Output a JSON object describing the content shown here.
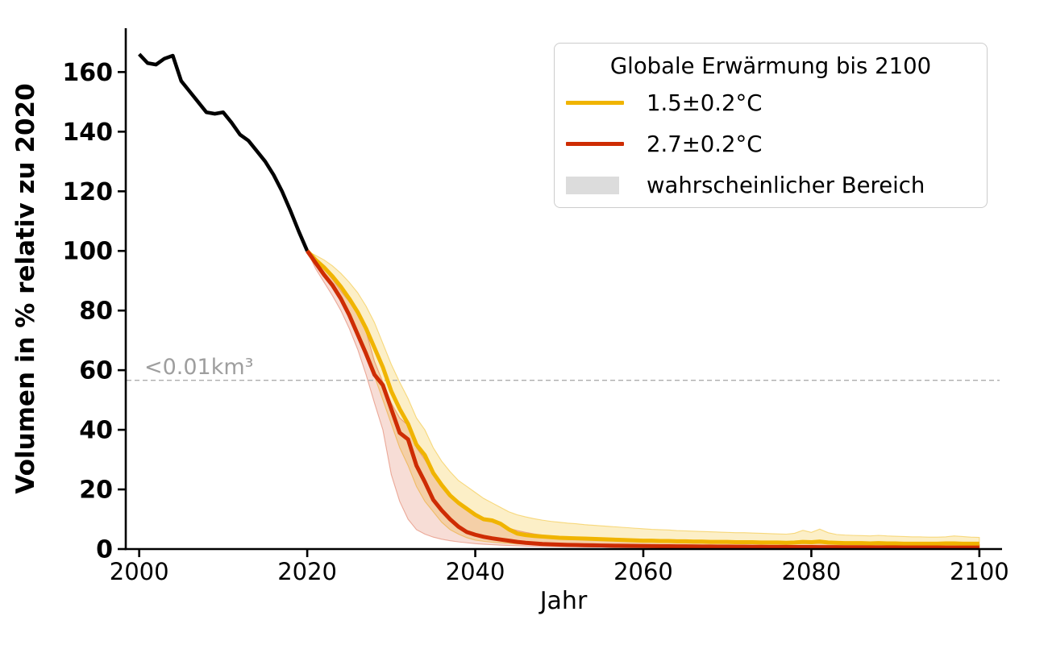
{
  "chart_data": {
    "type": "line",
    "title": "",
    "xlabel": "Jahr",
    "ylabel": "Volumen in % relativ zu 2020",
    "xlim": [
      1998.4,
      2102.7
    ],
    "ylim": [
      0,
      174.7
    ],
    "xticks": [
      2000,
      2020,
      2040,
      2060,
      2080,
      2100
    ],
    "yticks": [
      0,
      20,
      40,
      60,
      80,
      100,
      120,
      140,
      160
    ],
    "grid": false,
    "legend": {
      "position": "upper right",
      "title": "Globale Erwärmung bis 2100",
      "entries": [
        {
          "label": "1.5±0.2°C",
          "type": "line",
          "color": "#f0b400"
        },
        {
          "label": "2.7±0.2°C",
          "type": "line",
          "color": "#ce2c03"
        },
        {
          "label": "wahrscheinlicher Bereich",
          "type": "patch",
          "color": "#dcdcdc"
        }
      ]
    },
    "annotation": {
      "threshold_value": 56.6,
      "label": "<0.01km³",
      "line_color": "#adadad",
      "label_color": "#9e9e9e"
    },
    "series": [
      {
        "id": "historical",
        "color": "#000000",
        "width": 4.5,
        "x": [
          2000,
          2001,
          2002,
          2003,
          2004,
          2005,
          2006,
          2007,
          2008,
          2009,
          2010,
          2011,
          2012,
          2013,
          2014,
          2015,
          2016,
          2017,
          2018,
          2019,
          2020
        ],
        "y": [
          166,
          163,
          162.5,
          164.5,
          165.5,
          157,
          153.5,
          150,
          146.5,
          146,
          146.5,
          143,
          139,
          137,
          133.5,
          130,
          125.5,
          120,
          113.5,
          106.5,
          100
        ]
      },
      {
        "id": "scenario-1.5C",
        "color": "#f0b400",
        "width": 5,
        "band_fill": "rgba(240,180,0,0.22)",
        "band_stroke": "rgba(240,180,0,0.45)",
        "x": [
          2020,
          2021,
          2022,
          2023,
          2024,
          2025,
          2026,
          2027,
          2028,
          2029,
          2030,
          2031,
          2032,
          2033,
          2034,
          2035,
          2036,
          2037,
          2038,
          2039,
          2040,
          2041,
          2042,
          2043,
          2044,
          2045,
          2046,
          2047,
          2048,
          2049,
          2050,
          2051,
          2052,
          2053,
          2054,
          2055,
          2056,
          2057,
          2058,
          2059,
          2060,
          2061,
          2062,
          2063,
          2064,
          2065,
          2066,
          2067,
          2068,
          2069,
          2070,
          2071,
          2072,
          2073,
          2074,
          2075,
          2076,
          2077,
          2078,
          2079,
          2080,
          2081,
          2082,
          2083,
          2084,
          2085,
          2086,
          2087,
          2088,
          2089,
          2090,
          2091,
          2092,
          2093,
          2094,
          2095,
          2096,
          2097,
          2098,
          2099,
          2100
        ],
        "y": [
          100,
          97,
          94.5,
          91.5,
          88,
          84,
          79.5,
          74,
          67.5,
          61,
          53,
          47,
          42,
          35,
          31.5,
          25.5,
          21.5,
          18,
          15.5,
          13.5,
          11.5,
          10,
          9.6,
          8.5,
          6.6,
          5.2,
          4.7,
          4.4,
          4.2,
          4.0,
          3.8,
          3.7,
          3.6,
          3.5,
          3.4,
          3.3,
          3.2,
          3.1,
          3.0,
          2.9,
          2.8,
          2.8,
          2.7,
          2.7,
          2.6,
          2.6,
          2.5,
          2.5,
          2.4,
          2.4,
          2.4,
          2.3,
          2.3,
          2.3,
          2.2,
          2.2,
          2.2,
          2.1,
          2.2,
          2.4,
          2.3,
          2.5,
          2.2,
          2.1,
          2.0,
          2.0,
          2.0,
          1.9,
          2.0,
          1.9,
          1.9,
          1.8,
          1.8,
          1.8,
          1.8,
          1.8,
          1.9,
          1.9,
          1.8,
          1.8,
          1.8
        ],
        "upper": [
          100,
          98.5,
          97,
          95,
          92.5,
          89.5,
          86,
          81.5,
          76,
          69,
          62,
          56,
          50.5,
          44,
          40,
          34,
          29.5,
          26,
          23,
          21,
          19,
          17,
          15.5,
          14,
          12.5,
          11.5,
          10.8,
          10.2,
          9.7,
          9.3,
          9.0,
          8.7,
          8.5,
          8.2,
          8.0,
          7.8,
          7.6,
          7.4,
          7.2,
          7.0,
          6.8,
          6.6,
          6.5,
          6.4,
          6.2,
          6.1,
          6.0,
          5.9,
          5.8,
          5.7,
          5.6,
          5.5,
          5.5,
          5.4,
          5.3,
          5.2,
          5.1,
          5.0,
          5.3,
          6.3,
          5.6,
          6.7,
          5.5,
          4.9,
          4.7,
          4.6,
          4.5,
          4.4,
          4.6,
          4.4,
          4.3,
          4.2,
          4.1,
          4.1,
          4.0,
          4.0,
          4.1,
          4.4,
          4.2,
          4.0,
          3.9
        ],
        "lower": [
          100,
          96,
          92.5,
          88.5,
          84,
          79,
          73,
          66,
          58,
          50,
          42,
          34,
          28,
          21,
          16,
          12.5,
          9,
          6.5,
          5,
          3.8,
          3.0,
          2.6,
          2.3,
          2.1,
          1.9,
          1.7,
          1.6,
          1.5,
          1.45,
          1.4,
          1.35,
          1.3,
          1.28,
          1.25,
          1.22,
          1.2,
          1.17,
          1.15,
          1.12,
          1.1,
          1.08,
          1.05,
          1.02,
          1.0,
          0.98,
          0.96,
          0.94,
          0.92,
          0.9,
          0.88,
          0.86,
          0.85,
          0.83,
          0.82,
          0.8,
          0.79,
          0.78,
          0.76,
          0.75,
          0.74,
          0.72,
          0.71,
          0.7,
          0.69,
          0.68,
          0.67,
          0.66,
          0.65,
          0.64,
          0.63,
          0.62,
          0.61,
          0.6,
          0.6,
          0.59,
          0.58,
          0.58,
          0.57,
          0.57,
          0.56,
          0.55
        ]
      },
      {
        "id": "scenario-2.7C",
        "color": "#ce2c03",
        "width": 5,
        "band_fill": "rgba(206,44,3,0.16)",
        "band_stroke": "rgba(206,44,3,0.35)",
        "x": [
          2020,
          2021,
          2022,
          2023,
          2024,
          2025,
          2026,
          2027,
          2028,
          2029,
          2030,
          2031,
          2032,
          2033,
          2034,
          2035,
          2036,
          2037,
          2038,
          2039,
          2040,
          2041,
          2042,
          2043,
          2044,
          2045,
          2046,
          2047,
          2048,
          2049,
          2050,
          2051,
          2052,
          2053,
          2054,
          2055,
          2056,
          2057,
          2058,
          2059,
          2060,
          2061,
          2062,
          2063,
          2064,
          2065,
          2066,
          2067,
          2068,
          2069,
          2070,
          2071,
          2072,
          2073,
          2074,
          2075,
          2076,
          2077,
          2078,
          2079,
          2080,
          2081,
          2082,
          2083,
          2084,
          2085,
          2086,
          2087,
          2088,
          2089,
          2090,
          2091,
          2092,
          2093,
          2094,
          2095,
          2096,
          2097,
          2098,
          2099,
          2100
        ],
        "y": [
          100,
          96,
          92,
          88.5,
          84,
          78.5,
          72,
          65.5,
          58.5,
          55,
          47,
          39,
          36.8,
          28,
          22.5,
          16.5,
          13,
          10,
          7.5,
          5.7,
          4.8,
          4.1,
          3.6,
          3.2,
          2.8,
          2.4,
          2.1,
          1.9,
          1.7,
          1.6,
          1.5,
          1.4,
          1.35,
          1.3,
          1.25,
          1.2,
          1.15,
          1.1,
          1.08,
          1.05,
          1.0,
          0.98,
          0.96,
          0.94,
          0.92,
          0.9,
          0.88,
          0.86,
          0.84,
          0.82,
          0.8,
          0.78,
          0.77,
          0.75,
          0.74,
          0.72,
          0.71,
          0.7,
          0.68,
          0.67,
          0.66,
          0.65,
          0.64,
          0.63,
          0.62,
          0.61,
          0.6,
          0.59,
          0.58,
          0.57,
          0.56,
          0.55,
          0.55,
          0.54,
          0.53,
          0.53,
          0.52,
          0.52,
          0.51,
          0.5,
          0.5
        ],
        "upper": [
          100,
          97,
          94,
          90.5,
          86.5,
          83,
          79.5,
          73,
          63,
          56,
          49,
          44,
          41.5,
          34,
          30,
          25,
          21,
          18.5,
          16,
          13,
          11.5,
          10.5,
          9.5,
          8,
          7,
          6.2,
          5.6,
          5.1,
          4.7,
          4.3,
          4.0,
          3.8,
          3.7,
          3.5,
          3.4,
          3.3,
          3.2,
          3.1,
          3.0,
          2.9,
          2.8,
          2.75,
          2.7,
          2.65,
          2.6,
          2.55,
          2.5,
          2.45,
          2.4,
          2.35,
          2.3,
          2.25,
          2.2,
          2.18,
          2.15,
          2.1,
          2.08,
          2.05,
          2.02,
          2.0,
          1.98,
          1.95,
          1.9,
          1.88,
          1.85,
          1.82,
          1.8,
          1.78,
          1.75,
          1.72,
          1.7,
          1.68,
          1.66,
          1.64,
          1.62,
          1.6,
          1.58,
          1.56,
          1.54,
          1.52,
          1.5
        ],
        "lower": [
          100,
          94,
          89.5,
          85,
          80,
          74,
          67,
          58.5,
          49,
          40,
          25,
          16,
          10,
          6.5,
          5,
          4,
          3.3,
          2.8,
          2.4,
          2.1,
          1.8,
          1.6,
          1.45,
          1.3,
          1.2,
          1.1,
          1.0,
          0.95,
          0.9,
          0.85,
          0.8,
          0.78,
          0.75,
          0.73,
          0.7,
          0.68,
          0.66,
          0.64,
          0.62,
          0.6,
          0.58,
          0.56,
          0.55,
          0.53,
          0.52,
          0.5,
          0.49,
          0.48,
          0.47,
          0.46,
          0.45,
          0.44,
          0.43,
          0.42,
          0.41,
          0.4,
          0.39,
          0.38,
          0.37,
          0.36,
          0.35,
          0.34,
          0.34,
          0.33,
          0.33,
          0.32,
          0.32,
          0.31,
          0.31,
          0.3,
          0.3,
          0.29,
          0.29,
          0.28,
          0.28,
          0.27,
          0.27,
          0.26,
          0.26,
          0.25,
          0.25
        ]
      }
    ]
  }
}
